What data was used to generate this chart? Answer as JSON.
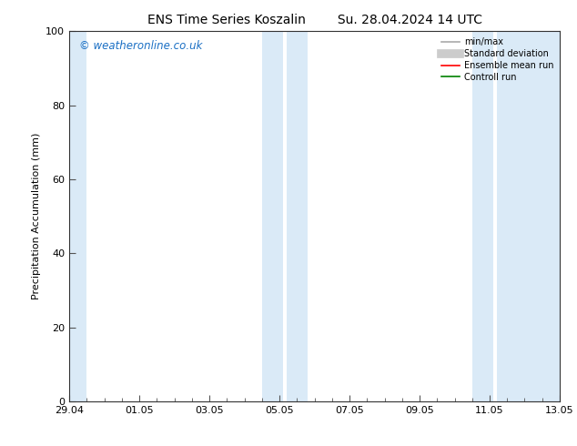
{
  "title": "ENS Time Series Koszalin        Su. 28.04.2024 14 UTC",
  "ylabel": "Precipitation Accumulation (mm)",
  "ylim": [
    0,
    100
  ],
  "yticks": [
    0,
    20,
    40,
    60,
    80,
    100
  ],
  "background_color": "#ffffff",
  "plot_bg_color": "#ffffff",
  "watermark": "© weatheronline.co.uk",
  "watermark_color": "#1a6fc4",
  "xtick_labels": [
    "29.04",
    "01.05",
    "03.05",
    "05.05",
    "07.05",
    "09.05",
    "11.05",
    "13.05"
  ],
  "xtick_positions": [
    0,
    2,
    4,
    6,
    8,
    10,
    12,
    14
  ],
  "shaded_bands": [
    {
      "xmin": -0.05,
      "xmax": 0.55,
      "color": "#daeaf7"
    },
    {
      "xmin": 5.45,
      "xmax": 6.55,
      "color": "#daeaf7"
    },
    {
      "xmin": 5.75,
      "xmax": 6.55,
      "color": "#daeaf7"
    },
    {
      "xmin": 11.45,
      "xmax": 14.05,
      "color": "#daeaf7"
    }
  ],
  "legend_entries": [
    {
      "label": "min/max",
      "color": "#aaaaaa",
      "lw": 1.2,
      "ls": "-",
      "type": "line"
    },
    {
      "label": "Standard deviation",
      "color": "#cccccc",
      "lw": 7,
      "ls": "-",
      "type": "line"
    },
    {
      "label": "Ensemble mean run",
      "color": "#ff0000",
      "lw": 1.2,
      "ls": "-",
      "type": "line"
    },
    {
      "label": "Controll run",
      "color": "#008000",
      "lw": 1.2,
      "ls": "-",
      "type": "line"
    }
  ],
  "xmin": 0,
  "xmax": 14,
  "title_fontsize": 10,
  "label_fontsize": 8,
  "tick_fontsize": 8
}
